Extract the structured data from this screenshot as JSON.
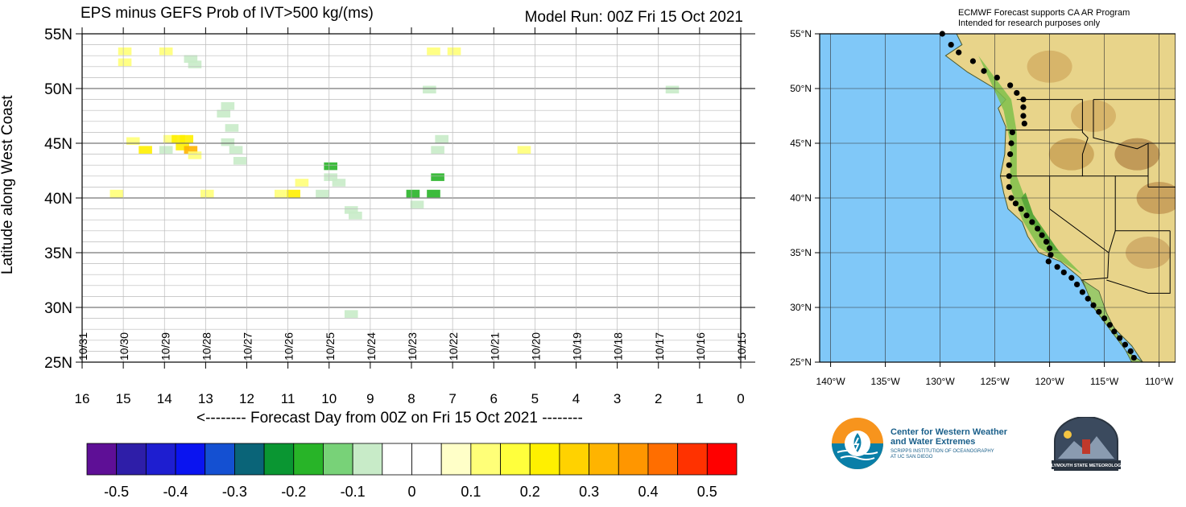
{
  "header": {
    "left_title": "EPS minus GEFS Prob of IVT>500 kg/(ms)",
    "right_title": "Model Run: 00Z Fri 15 Oct 2021"
  },
  "chart_data": {
    "type": "heatmap",
    "xlabel": "<-------- Forecast Day from 00Z on Fri 15 Oct 2021 --------",
    "ylabel": "Latitude along West Coast",
    "x_ticks": [
      16,
      15,
      14,
      13,
      12,
      11,
      10,
      9,
      8,
      7,
      6,
      5,
      4,
      3,
      2,
      1,
      0
    ],
    "xlim": [
      16,
      0
    ],
    "y_ticks": [
      "25N",
      "30N",
      "35N",
      "40N",
      "45N",
      "50N",
      "55N"
    ],
    "ylim": [
      25,
      55
    ],
    "date_labels": [
      "10/31",
      "10/30",
      "10/29",
      "10/28",
      "10/27",
      "10/26",
      "10/25",
      "10/24",
      "10/23",
      "10/22",
      "10/21",
      "10/20",
      "10/19",
      "10/18",
      "10/17",
      "10/16",
      "10/15"
    ],
    "colorbar": {
      "labels": [
        "-0.5",
        "-0.4",
        "-0.3",
        "-0.2",
        "-0.1",
        "0",
        "0.1",
        "0.2",
        "0.3",
        "0.4",
        "0.5"
      ],
      "colors": [
        "#5e0f96",
        "#2e1ea8",
        "#1e1ed0",
        "#0a14f0",
        "#1450d2",
        "#0a6478",
        "#0a9632",
        "#28b428",
        "#78d278",
        "#c8ebc8",
        "#ffffff",
        "#ffffff",
        "#ffffc8",
        "#ffff78",
        "#ffff3c",
        "#fff000",
        "#ffd200",
        "#ffb400",
        "#ff9600",
        "#ff6e00",
        "#ff3200",
        "#ff0000"
      ]
    },
    "cells": [
      {
        "day": 15,
        "lat": 53.5,
        "v": 0.1
      },
      {
        "day": 15,
        "lat": 52.5,
        "v": 0.1
      },
      {
        "day": 14,
        "lat": 53.5,
        "v": 0.1
      },
      {
        "day": 13.4,
        "lat": 52.8,
        "v": -0.1
      },
      {
        "day": 13.3,
        "lat": 52.3,
        "v": -0.1
      },
      {
        "day": 12.5,
        "lat": 48.5,
        "v": -0.1
      },
      {
        "day": 12.6,
        "lat": 47.8,
        "v": -0.1
      },
      {
        "day": 12.4,
        "lat": 46.5,
        "v": -0.1
      },
      {
        "day": 12.5,
        "lat": 45.2,
        "v": -0.1
      },
      {
        "day": 12.3,
        "lat": 44.5,
        "v": -0.1
      },
      {
        "day": 12.2,
        "lat": 43.5,
        "v": -0.1
      },
      {
        "day": 13.9,
        "lat": 45.5,
        "v": 0.1
      },
      {
        "day": 13.7,
        "lat": 45.5,
        "v": 0.2
      },
      {
        "day": 13.5,
        "lat": 45.5,
        "v": 0.2
      },
      {
        "day": 13.6,
        "lat": 44.8,
        "v": 0.2
      },
      {
        "day": 13.4,
        "lat": 44.5,
        "v": 0.3
      },
      {
        "day": 13.3,
        "lat": 44.0,
        "v": 0.1
      },
      {
        "day": 14.5,
        "lat": 44.5,
        "v": 0.2
      },
      {
        "day": 14.8,
        "lat": 45.3,
        "v": 0.1
      },
      {
        "day": 14.0,
        "lat": 44.5,
        "v": -0.1
      },
      {
        "day": 15.2,
        "lat": 40.5,
        "v": 0.1
      },
      {
        "day": 13.0,
        "lat": 40.5,
        "v": 0.1
      },
      {
        "day": 11.2,
        "lat": 40.5,
        "v": 0.1
      },
      {
        "day": 10.9,
        "lat": 40.5,
        "v": 0.2
      },
      {
        "day": 10.7,
        "lat": 41.5,
        "v": 0.1
      },
      {
        "day": 10.0,
        "lat": 43.0,
        "v": -0.2
      },
      {
        "day": 10.0,
        "lat": 42.0,
        "v": -0.1
      },
      {
        "day": 9.8,
        "lat": 41.5,
        "v": -0.1
      },
      {
        "day": 10.2,
        "lat": 40.5,
        "v": -0.1
      },
      {
        "day": 9.5,
        "lat": 39.0,
        "v": -0.1
      },
      {
        "day": 9.4,
        "lat": 38.5,
        "v": -0.1
      },
      {
        "day": 8.0,
        "lat": 40.5,
        "v": -0.2
      },
      {
        "day": 7.5,
        "lat": 40.5,
        "v": -0.2
      },
      {
        "day": 7.9,
        "lat": 39.5,
        "v": -0.1
      },
      {
        "day": 7.4,
        "lat": 42.0,
        "v": -0.2
      },
      {
        "day": 7.4,
        "lat": 44.5,
        "v": -0.1
      },
      {
        "day": 7.3,
        "lat": 45.5,
        "v": -0.1
      },
      {
        "day": 7.6,
        "lat": 50.0,
        "v": -0.1
      },
      {
        "day": 7.5,
        "lat": 53.5,
        "v": 0.1
      },
      {
        "day": 7.0,
        "lat": 53.5,
        "v": 0.1
      },
      {
        "day": 5.3,
        "lat": 44.5,
        "v": 0.1
      },
      {
        "day": 1.7,
        "lat": 50.0,
        "v": -0.1
      },
      {
        "day": 9.5,
        "lat": 29.5,
        "v": -0.1
      }
    ]
  },
  "map": {
    "credit_line1": "ECMWF Forecast supports CA AR Program",
    "credit_line2": "Intended for research purposes only",
    "lat_labels": [
      "55°N",
      "50°N",
      "45°N",
      "40°N",
      "35°N",
      "30°N",
      "25°N"
    ],
    "lon_labels": [
      "140°W",
      "135°W",
      "130°W",
      "125°W",
      "120°W",
      "115°W",
      "110°W"
    ],
    "ocean_color": "#80c8f8"
  },
  "logos": {
    "cw3e_line1": "Center for Western Weather",
    "cw3e_line2": "and Water Extremes",
    "cw3e_line3": "SCRIPPS INSTITUTION OF OCEANOGRAPHY",
    "cw3e_line4": "AT UC SAN DIEGO",
    "psu_text": "PLYMOUTH STATE METEOROLOGY"
  }
}
